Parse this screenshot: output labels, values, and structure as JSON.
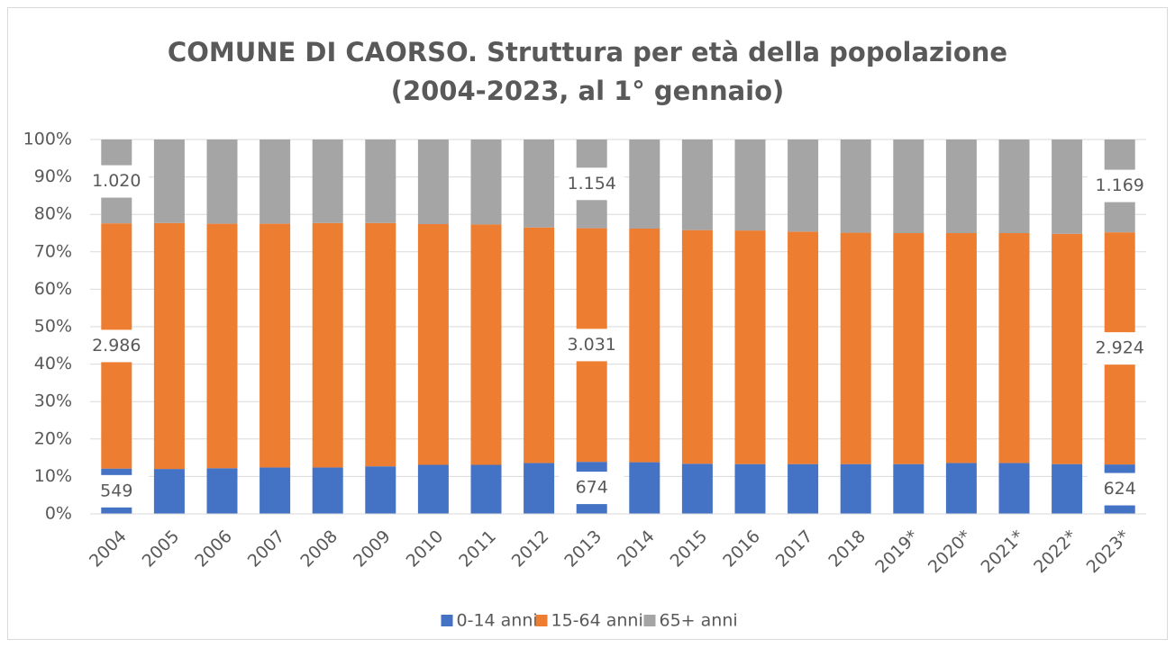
{
  "chart_data": {
    "type": "stacked_bar",
    "title": [
      "COMUNE DI CAORSO. Struttura per età della popolazione",
      "(2004-2023, al 1° gennaio)"
    ],
    "categories": [
      "2004",
      "2005",
      "2006",
      "2007",
      "2008",
      "2009",
      "2010",
      "2011",
      "2012",
      "2013",
      "2014",
      "2015",
      "2016",
      "2017",
      "2018",
      "2019*",
      "2020*",
      "2021*",
      "2022*",
      "2023*"
    ],
    "series": [
      {
        "name": "0-14 anni",
        "color": "#4472c4",
        "values": [
          12.1,
          12.0,
          12.2,
          12.4,
          12.4,
          12.7,
          13.1,
          13.1,
          13.6,
          13.9,
          13.8,
          13.4,
          13.3,
          13.3,
          13.3,
          13.3,
          13.6,
          13.6,
          13.3,
          13.2
        ],
        "count_labels": [
          "549",
          null,
          null,
          null,
          null,
          null,
          null,
          null,
          null,
          "674",
          null,
          null,
          null,
          null,
          null,
          null,
          null,
          null,
          null,
          "624"
        ]
      },
      {
        "name": "15-64 anni",
        "color": "#ed7d31",
        "values": [
          65.5,
          65.7,
          65.3,
          65.1,
          65.3,
          65.0,
          64.3,
          64.2,
          62.9,
          62.4,
          62.4,
          62.4,
          62.4,
          62.1,
          61.8,
          61.7,
          61.4,
          61.4,
          61.5,
          62.0
        ],
        "count_labels": [
          "2.986",
          null,
          null,
          null,
          null,
          null,
          null,
          null,
          null,
          "3.031",
          null,
          null,
          null,
          null,
          null,
          null,
          null,
          null,
          null,
          "2.924"
        ]
      },
      {
        "name": "65+ anni",
        "color": "#a5a5a5",
        "values": [
          22.4,
          22.3,
          22.5,
          22.5,
          22.3,
          22.3,
          22.6,
          22.7,
          23.5,
          23.7,
          23.8,
          24.2,
          24.3,
          24.6,
          24.9,
          25.0,
          25.0,
          25.0,
          25.2,
          24.8
        ],
        "count_labels": [
          "1.020",
          null,
          null,
          null,
          null,
          null,
          null,
          null,
          null,
          "1.154",
          null,
          null,
          null,
          null,
          null,
          null,
          null,
          null,
          null,
          "1.169"
        ]
      }
    ],
    "ylim": [
      0,
      100
    ],
    "yticks": [
      {
        "value": 0,
        "label": "0%"
      },
      {
        "value": 10,
        "label": "10%"
      },
      {
        "value": 20,
        "label": "20%"
      },
      {
        "value": 30,
        "label": "30%"
      },
      {
        "value": 40,
        "label": "40%"
      },
      {
        "value": 50,
        "label": "50%"
      },
      {
        "value": 60,
        "label": "60%"
      },
      {
        "value": 70,
        "label": "70%"
      },
      {
        "value": 80,
        "label": "80%"
      },
      {
        "value": 90,
        "label": "90%"
      },
      {
        "value": 100,
        "label": "100%"
      }
    ],
    "grid": true,
    "legend": "bottom"
  }
}
